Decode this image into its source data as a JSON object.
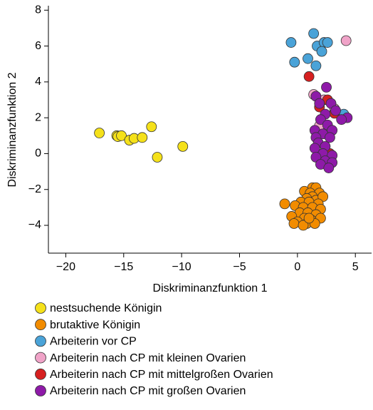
{
  "chart_data": {
    "type": "scatter",
    "x_label": "Diskriminanzfunktion 1",
    "y_label": "Diskriminanzfunktion 2",
    "xlim": [
      -21.5,
      6.4
    ],
    "ylim": [
      -5.55,
      8.25
    ],
    "xticks": [
      {
        "value": -20,
        "label": "−20"
      },
      {
        "value": -15,
        "label": "−15"
      },
      {
        "value": -10,
        "label": "−10"
      },
      {
        "value": -5,
        "label": "−5"
      },
      0,
      5
    ],
    "yticks": [
      {
        "value": -4,
        "label": "−4"
      },
      {
        "value": -2,
        "label": "−2"
      },
      0,
      2,
      4,
      6,
      8
    ],
    "legend_position": "below",
    "series": [
      {
        "name": "nestsuchende Königin",
        "color": "#f5e11a",
        "x": [
          -17.1,
          -15.6,
          -15.5,
          -15.2,
          -14.5,
          -14.1,
          -13.4,
          -12.6,
          -12.1,
          -9.9
        ],
        "y": [
          1.15,
          1.0,
          0.95,
          1.0,
          0.75,
          0.85,
          0.9,
          1.5,
          -0.2,
          0.4
        ]
      },
      {
        "name": "brutaktive Königin",
        "color": "#f28c00",
        "x": [
          -1.1,
          1.3,
          1.6,
          0.6,
          1.1,
          1.9,
          1.3,
          0.8,
          1.6,
          2.2,
          0.3,
          1.0,
          1.8,
          -0.2,
          0.5,
          1.3,
          2.0,
          0.2,
          0.9,
          1.6,
          -0.5,
          0.6,
          1.2,
          2.0,
          0.0,
          -0.3,
          0.8,
          0.5,
          1.5,
          1.0
        ],
        "y": [
          -2.8,
          -1.9,
          -1.9,
          -2.1,
          -2.2,
          -2.2,
          -2.4,
          -2.5,
          -2.6,
          -2.4,
          -2.7,
          -2.7,
          -2.8,
          -2.9,
          -3.0,
          -3.0,
          -3.1,
          -3.3,
          -3.3,
          -3.4,
          -3.5,
          -3.6,
          -3.7,
          -3.6,
          -3.8,
          -3.9,
          -3.9,
          -4.0,
          -3.9,
          -3.6
        ]
      },
      {
        "name": "Arbeiterin vor CP",
        "color": "#4aa3d8",
        "x": [
          -0.55,
          1.4,
          1.7,
          2.3,
          2.6,
          0.9,
          2.1,
          -0.25,
          1.6,
          4.0
        ],
        "y": [
          6.2,
          6.7,
          6.0,
          6.2,
          6.2,
          5.3,
          5.7,
          5.1,
          4.9,
          2.2
        ]
      },
      {
        "name": "Arbeiterin nach CP mit kleinen Ovarien",
        "color": "#f0a3c8",
        "x": [
          4.2,
          1.4,
          2.3,
          3.2,
          1.9
        ],
        "y": [
          6.3,
          3.3,
          3.0,
          2.5,
          1.55
        ]
      },
      {
        "name": "Arbeiterin nach CP mit mittelgroßen Ovarien",
        "color": "#d62020",
        "x": [
          1.0,
          2.6,
          1.9,
          3.2,
          2.8
        ],
        "y": [
          4.3,
          3.0,
          2.6,
          2.25,
          0.0
        ]
      },
      {
        "name": "Arbeiterin nach CP mit großen Ovarien",
        "color": "#8e1aa8",
        "x": [
          2.5,
          1.6,
          1.9,
          2.9,
          3.3,
          2.4,
          4.3,
          3.8,
          2.0,
          2.6,
          3.0,
          1.5,
          2.2,
          1.6,
          2.8,
          1.8,
          2.4,
          1.5,
          2.2,
          3.0,
          1.6,
          2.4,
          2.0,
          3.0,
          2.7
        ],
        "y": [
          3.7,
          3.2,
          2.8,
          2.8,
          2.4,
          2.2,
          2.0,
          1.9,
          1.9,
          1.6,
          1.3,
          1.3,
          1.1,
          0.9,
          0.9,
          0.6,
          0.4,
          0.3,
          0.0,
          -0.1,
          -0.2,
          -0.4,
          -0.6,
          -0.5,
          -0.8
        ]
      }
    ]
  }
}
